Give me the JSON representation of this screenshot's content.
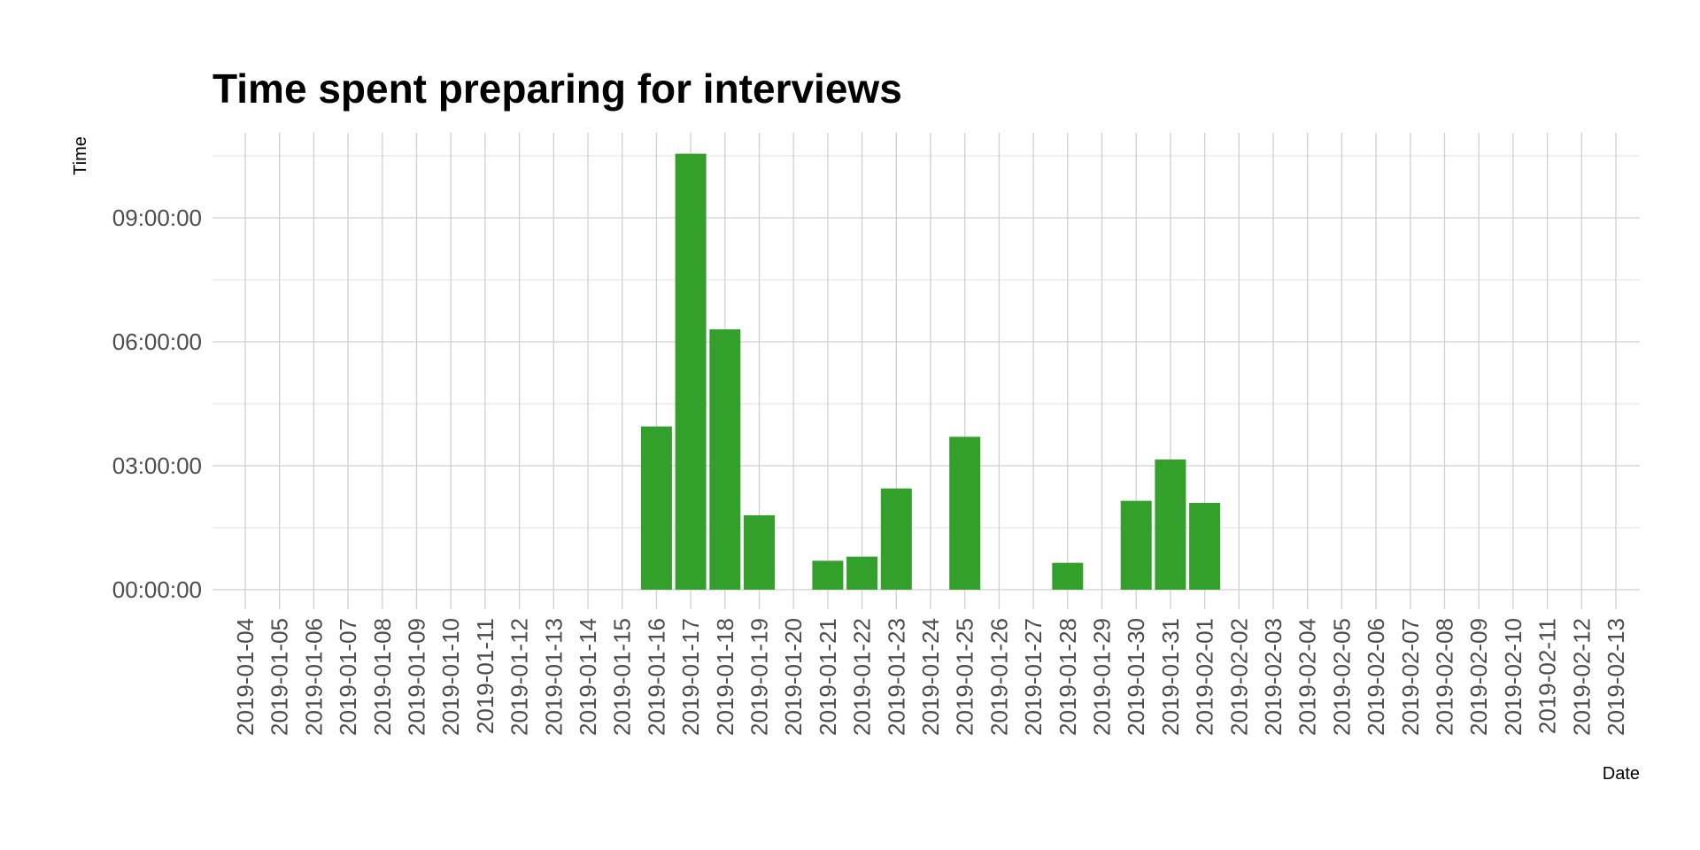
{
  "chart_data": {
    "type": "bar",
    "title": "Time spent preparing for interviews",
    "xlabel": "Date",
    "ylabel": "Time",
    "bar_color": "#33a02c",
    "grid": true,
    "legend": "none",
    "y_unit": "hours",
    "ylim": [
      0,
      10.6
    ],
    "y_ticks": [
      {
        "value": 0,
        "label": "00:00:00"
      },
      {
        "value": 3,
        "label": "03:00:00"
      },
      {
        "value": 6,
        "label": "06:00:00"
      },
      {
        "value": 9,
        "label": "09:00:00"
      }
    ],
    "categories": [
      "2019-01-04",
      "2019-01-05",
      "2019-01-06",
      "2019-01-07",
      "2019-01-08",
      "2019-01-09",
      "2019-01-10",
      "2019-01-11",
      "2019-01-12",
      "2019-01-13",
      "2019-01-14",
      "2019-01-15",
      "2019-01-16",
      "2019-01-17",
      "2019-01-18",
      "2019-01-19",
      "2019-01-20",
      "2019-01-21",
      "2019-01-22",
      "2019-01-23",
      "2019-01-24",
      "2019-01-25",
      "2019-01-26",
      "2019-01-27",
      "2019-01-28",
      "2019-01-29",
      "2019-01-30",
      "2019-01-31",
      "2019-02-01",
      "2019-02-02",
      "2019-02-03",
      "2019-02-04",
      "2019-02-05",
      "2019-02-06",
      "2019-02-07",
      "2019-02-08",
      "2019-02-09",
      "2019-02-10",
      "2019-02-11",
      "2019-02-12",
      "2019-02-13"
    ],
    "bars": [
      {
        "date": "2019-01-16",
        "value": 3.95
      },
      {
        "date": "2019-01-17",
        "value": 10.55
      },
      {
        "date": "2019-01-18",
        "value": 6.3
      },
      {
        "date": "2019-01-19",
        "value": 1.8
      },
      {
        "date": "2019-01-21",
        "value": 0.7
      },
      {
        "date": "2019-01-22",
        "value": 0.8
      },
      {
        "date": "2019-01-23",
        "value": 2.45
      },
      {
        "date": "2019-01-25",
        "value": 3.7
      },
      {
        "date": "2019-01-28",
        "value": 0.65
      },
      {
        "date": "2019-01-30",
        "value": 2.15
      },
      {
        "date": "2019-01-31",
        "value": 3.15
      },
      {
        "date": "2019-02-01",
        "value": 2.1
      }
    ]
  }
}
